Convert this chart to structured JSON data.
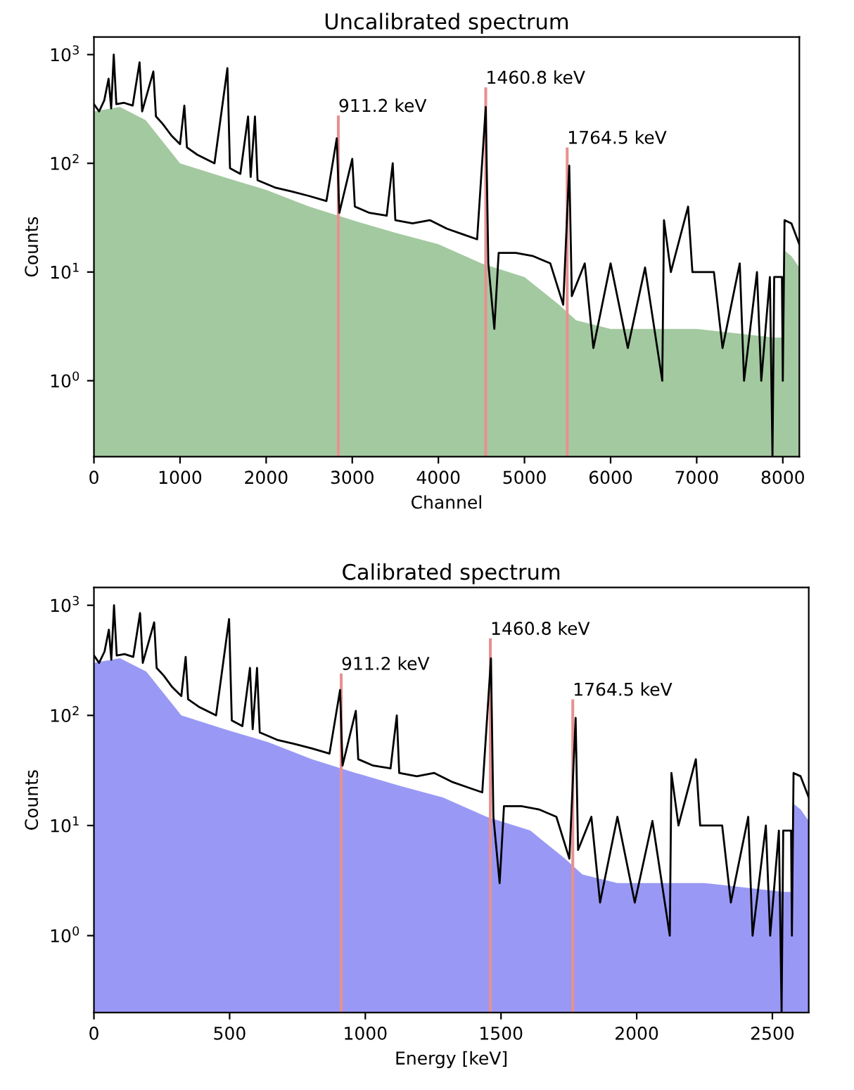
{
  "chart_data": [
    {
      "type": "line",
      "title": "Uncalibrated spectrum",
      "xlabel": "Channel",
      "ylabel": "Counts",
      "log": "y",
      "grid": false,
      "legend": false,
      "xlim": [
        0,
        8192
      ],
      "xticks": [
        0,
        1000,
        2000,
        3000,
        4000,
        5000,
        6000,
        7000,
        8000
      ],
      "ylim": [
        0.2,
        1450
      ],
      "yticks": [
        {
          "value": 1,
          "label": "10$^{0}$"
        },
        {
          "value": 10,
          "label": "10$^{1}$"
        },
        {
          "value": 100,
          "label": "10$^{2}$"
        },
        {
          "value": 1000,
          "label": "10$^{3}$"
        }
      ],
      "series": [
        {
          "type": "area",
          "color": "#a3c9a0",
          "x": [
            0,
            300,
            600,
            1000,
            1500,
            2000,
            2500,
            3000,
            3500,
            4000,
            4500,
            5000,
            5400,
            5600,
            6000,
            7000,
            7900,
            7990,
            8010,
            8100,
            8192
          ],
          "values": [
            300,
            330,
            250,
            100,
            75,
            57,
            40,
            30,
            23,
            18,
            12,
            9,
            5,
            3.6,
            3,
            3,
            2.5,
            2.5,
            16,
            14,
            11
          ]
        },
        {
          "type": "bar",
          "color": "#e89090",
          "x": [
            2838,
            4550,
            5496
          ],
          "values": [
            275,
            500,
            140
          ]
        },
        {
          "color": "#000000",
          "x": [
            0,
            60,
            120,
            170,
            200,
            230,
            260,
            350,
            450,
            530,
            560,
            690,
            720,
            800,
            900,
            1000,
            1050,
            1080,
            1200,
            1400,
            1550,
            1580,
            1700,
            1790,
            1820,
            1870,
            1900,
            2100,
            2300,
            2500,
            2700,
            2820,
            2850,
            3000,
            3030,
            3200,
            3400,
            3470,
            3500,
            3700,
            3900,
            4100,
            4300,
            4450,
            4550,
            4580,
            4650,
            4700,
            4900,
            5100,
            5300,
            5450,
            5520,
            5550,
            5700,
            5800,
            6000,
            6200,
            6400,
            6600,
            6620,
            6700,
            6900,
            6950,
            7200,
            7300,
            7500,
            7550,
            7700,
            7750,
            7850,
            7880,
            7900,
            7990,
            8000,
            8020,
            8100,
            8192
          ],
          "values": [
            350,
            300,
            380,
            600,
            320,
            1000,
            350,
            360,
            340,
            850,
            300,
            700,
            270,
            230,
            180,
            150,
            340,
            140,
            120,
            100,
            750,
            90,
            80,
            270,
            75,
            270,
            70,
            60,
            55,
            50,
            45,
            170,
            35,
            110,
            40,
            35,
            33,
            100,
            30,
            28,
            30,
            25,
            22,
            20,
            330,
            12,
            3,
            15,
            15,
            14,
            12,
            5,
            95,
            6,
            12,
            2,
            12,
            2,
            11,
            1,
            30,
            10,
            40,
            10,
            10,
            2,
            12,
            1,
            10,
            1,
            9,
            0.2,
            9,
            9,
            1,
            30,
            28,
            18
          ]
        }
      ],
      "annotations": [
        {
          "text": "911.2 keV",
          "x": 2838,
          "y": 275
        },
        {
          "text": "1460.8 keV",
          "x": 4550,
          "y": 500
        },
        {
          "text": "1764.5 keV",
          "x": 5496,
          "y": 140
        }
      ]
    },
    {
      "type": "line",
      "title": "Calibrated spectrum",
      "xlabel": "Energy [keV]",
      "ylabel": "Counts",
      "log": "y",
      "grid": false,
      "legend": false,
      "xlim": [
        0,
        2634
      ],
      "xticks": [
        0,
        500,
        1000,
        1500,
        2000,
        2500
      ],
      "ylim": [
        0.2,
        1450
      ],
      "yticks": [
        {
          "value": 1,
          "label": "10$^{0}$"
        },
        {
          "value": 10,
          "label": "10$^{1}$"
        },
        {
          "value": 100,
          "label": "10$^{2}$"
        },
        {
          "value": 1000,
          "label": "10$^{3}$"
        }
      ],
      "series": [
        {
          "type": "area",
          "color": "#9999f5",
          "x": [
            0,
            96,
            193,
            322,
            482,
            643,
            804,
            965,
            1125,
            1286,
            1447,
            1608,
            1736,
            1800,
            1929,
            2251,
            2540,
            2569,
            2575,
            2604,
            2634
          ],
          "values": [
            300,
            330,
            250,
            100,
            75,
            57,
            40,
            30,
            23,
            18,
            12,
            9,
            5,
            3.6,
            3,
            3,
            2.5,
            2.5,
            16,
            14,
            11
          ]
        },
        {
          "type": "bar",
          "color": "#e89090",
          "x": [
            911.2,
            1460.8,
            1764.5
          ],
          "values": [
            240,
            500,
            140
          ]
        },
        {
          "color": "#000000",
          "x": [
            0,
            19,
            39,
            55,
            64,
            74,
            84,
            113,
            145,
            170,
            180,
            222,
            231,
            257,
            289,
            322,
            338,
            347,
            386,
            450,
            498,
            508,
            547,
            575,
            585,
            601,
            611,
            675,
            739,
            804,
            868,
            907,
            916,
            965,
            974,
            1029,
            1093,
            1116,
            1125,
            1190,
            1254,
            1318,
            1382,
            1431,
            1463,
            1472,
            1495,
            1511,
            1575,
            1640,
            1704,
            1752,
            1775,
            1784,
            1833,
            1865,
            1929,
            1993,
            2058,
            2122,
            2128,
            2154,
            2218,
            2234,
            2315,
            2347,
            2411,
            2427,
            2476,
            2492,
            2524,
            2534,
            2540,
            2569,
            2572,
            2578,
            2604,
            2634
          ],
          "values": [
            350,
            300,
            380,
            600,
            320,
            1000,
            350,
            360,
            340,
            850,
            300,
            700,
            270,
            230,
            180,
            150,
            340,
            140,
            120,
            100,
            750,
            90,
            80,
            270,
            75,
            270,
            70,
            60,
            55,
            50,
            45,
            170,
            35,
            110,
            40,
            35,
            33,
            100,
            30,
            28,
            30,
            25,
            22,
            20,
            330,
            12,
            3,
            15,
            15,
            14,
            12,
            5,
            95,
            6,
            12,
            2,
            12,
            2,
            11,
            1,
            30,
            10,
            40,
            10,
            10,
            2,
            12,
            1,
            10,
            1,
            9,
            0.2,
            9,
            9,
            1,
            30,
            28,
            18
          ]
        }
      ],
      "annotations": [
        {
          "text": "911.2 keV",
          "x": 911.2,
          "y": 240
        },
        {
          "text": "1460.8 keV",
          "x": 1460.8,
          "y": 500
        },
        {
          "text": "1764.5 keV",
          "x": 1764.5,
          "y": 140
        }
      ]
    }
  ]
}
